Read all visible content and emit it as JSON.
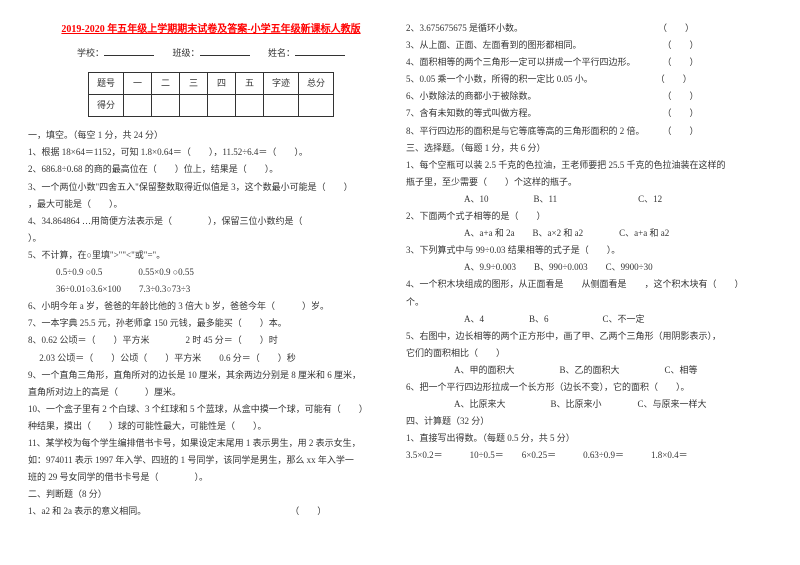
{
  "title": "2019-2020 年五年级上学期期末试卷及答案-小学五年级新课标人教版",
  "info_labels": {
    "school": "学校：",
    "class": "班级：",
    "name": "姓名："
  },
  "score_table": {
    "headers": [
      "题号",
      "一",
      "二",
      "三",
      "四",
      "五",
      "字迹",
      "总分"
    ],
    "row_label": "得分"
  },
  "left": {
    "s1": "一，填空。（每空 1 分，共 24 分）",
    "l1": "1、根据 18×64＝1152，可知 1.8×0.64＝（　　），11.52÷6.4＝（　　）。",
    "l2": "2、686.8÷0.68 的商的最高位在（　　）位上，结果是（　　）。",
    "l3": "3、一个两位小数\"四舍五入\"保留整数取得近似值是 3，这个数最小可能是（　　）",
    "l3b": "，最大可能是（　　）。",
    "l4": "4、34.864864 …用简便方法表示是（　　　　），保留三位小数约是（　　",
    "l4b": "）。",
    "l5": "5、不计算，在○里填\">\"\"<\"或\"=\"。",
    "l5a": "0.5÷0.9 ○0.5　　　　0.55×0.9 ○0.55",
    "l5b": "36÷0.01○3.6×100　　7.3÷0.3○73÷3",
    "l6": "6、小明今年 a 岁，爸爸的年龄比他的 3 倍大 b 岁，爸爸今年（　　　）岁。",
    "l7": "7、一本字典 25.5 元，孙老师拿 150 元钱，最多能买（　　）本。",
    "l8": "8、0.62 公顷＝（　　）平方米　　　　2 时 45 分＝（　　）时",
    "l8b": "　 2.03 公顷＝（　　）公顷（　　）平方米　　0.6 分＝（　　）秒",
    "l9": "9、一个直角三角形，直角所对的边长是 10 厘米，其余两边分别是 8 厘米和 6 厘米，",
    "l9b": "直角所对边上的高是（　　　）厘米。",
    "l10": "10、一个盒子里有 2 个白球、3 个红球和 5 个蓝球，从盒中摸一个球，可能有（　　）",
    "l10b": "种结果，摸出（　　）球的可能性最大，可能性是（　　）。",
    "l11": "11、某学校为每个学生编排借书卡号，如果设定末尾用 1 表示男生，用 2 表示女生，",
    "l11b": "如：974011 表示 1997 年入学、四班的 1 号同学，该同学是男生，那么 xx 年入学一",
    "l11c": "班的 29 号女同学的借书卡号是（　　　　）。",
    "s2": "二、判断题（8 分）",
    "j1": "1、a2 和 2a 表示的意义相同。　　　　　　　　　　　　　　　　　（　　）"
  },
  "right": {
    "j2": "2、3.675675675 是循环小数。　　　　　　　　　　　　　　　　（　　）",
    "j3": "3、从上面、正面、左面看到的图形都相同。　　　　　　　　　　（　　）",
    "j4": "4、面积相等的两个三角形一定可以拼成一个平行四边形。　　　　（　　）",
    "j5": "5、0.05 乘一个小数，所得的积一定比 0.05 小。　　　　　　　　（　　）",
    "j6": "6、小数除法的商都小于被除数。　　　　　　　　　　　　　　　（　　）",
    "j7": "7、含有未知数的等式叫做方程。　　　　　　　　　　　　　　　（　　）",
    "j8": "8、平行四边形的面积是与它等底等高的三角形面积的 2 倍。　　　（　　）",
    "s3": "三、选择题。（每题 1 分，共 6 分）",
    "x1": "1、每个空瓶可以装 2.5 千克的色拉油，王老师要把 25.5 千克的色拉油装在这样的",
    "x1b": "瓶子里，至少需要（　　）个这样的瓶子。",
    "x1o": "A、10　　　　　B、11　　　　　　　　　C、12",
    "x2": "2、下面两个式子相等的是（　　）",
    "x2o": "A、a+a 和 2a　　B、a×2 和 a2　　　　C、a+a 和 a2",
    "x3": "3、下列算式中与 99÷0.03 结果相等的式子是（　　）。",
    "x3o": "A、9.9÷0.003　　B、990÷0.003　　C、9900÷30",
    "x4": "4、一个积木块组成的图形，从正面看是　　从侧面看是　　，这个积木块有（　　）",
    "x4b": "个。",
    "x4o": "A、4　　　　　B、6　　　　　　C、不一定",
    "x5": "5、右图中，边长相等的两个正方形中，画了甲、乙两个三角形（用阴影表示），",
    "x5b": "它们的面积相比（　　）",
    "x5o": "A、甲的面积大　　　　　B、乙的面积大　　　　　C、相等",
    "x6": "6、把一个平行四边形拉成一个长方形（边长不变），它的面积（　　）。",
    "x6o": "A、比原来大　　　　　B、比原来小　　　　C、与原来一样大",
    "s4": "四、计算题（32 分）",
    "c1": "1、直接写出得数。（每题 0.5 分，共 5 分）",
    "c1a": "3.5×0.2＝　　　10÷0.5＝　　6×0.25＝　　　0.63÷0.9＝　　　1.8×0.4＝"
  }
}
